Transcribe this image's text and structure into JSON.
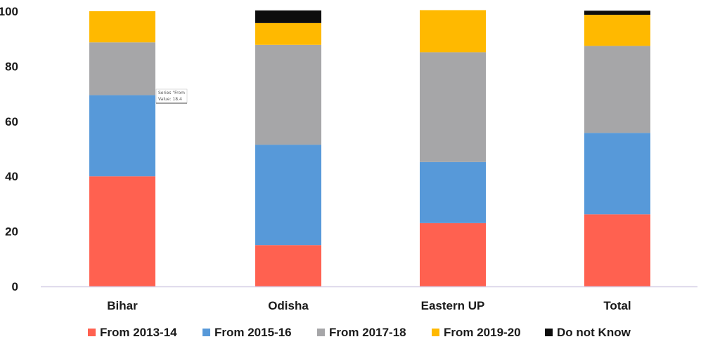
{
  "chart_data": {
    "type": "bar",
    "stacked": true,
    "categories": [
      "Bihar",
      "Odisha",
      "Eastern UP",
      "Total"
    ],
    "series": [
      {
        "name": "From 2013-14",
        "color": "#ff6150",
        "values": [
          40.0,
          15.0,
          23.0,
          26.2
        ]
      },
      {
        "name": "From 2015-16",
        "color": "#5799d9",
        "values": [
          29.5,
          36.5,
          22.2,
          29.6
        ]
      },
      {
        "name": "From 2017-18",
        "color": "#a6a6a8",
        "values": [
          19.2,
          36.3,
          39.9,
          31.6
        ]
      },
      {
        "name": "From 2019-20",
        "color": "#ffb900",
        "values": [
          11.3,
          7.9,
          15.3,
          11.3
        ]
      },
      {
        "name": "Do not Know",
        "color": "#0d0d0d",
        "values": [
          0.0,
          4.6,
          0.0,
          1.5
        ]
      }
    ],
    "ylim": [
      0,
      100
    ],
    "yticks": [
      0,
      20,
      40,
      60,
      80,
      100
    ],
    "grid": false,
    "legend_position": "bottom",
    "tooltip": {
      "line1": "Series \"From",
      "line2": "Value: 18.4"
    }
  }
}
